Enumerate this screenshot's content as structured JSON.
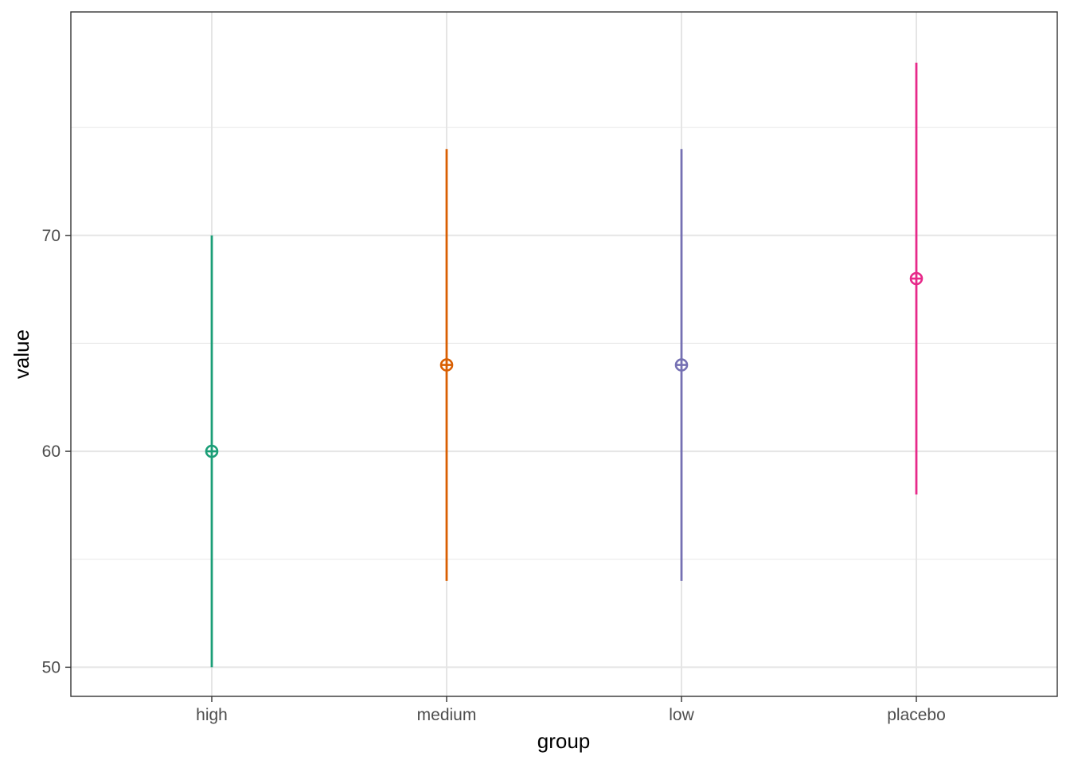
{
  "chart_data": {
    "type": "pointrange",
    "xlabel": "group",
    "ylabel": "value",
    "categories": [
      "high",
      "medium",
      "low",
      "placebo"
    ],
    "points": [
      {
        "group": "high",
        "value": 60,
        "low": 50,
        "high": 70,
        "color": "#1B9E77"
      },
      {
        "group": "medium",
        "value": 64,
        "low": 54,
        "high": 74,
        "color": "#D95F02"
      },
      {
        "group": "low",
        "value": 64,
        "low": 54,
        "high": 74,
        "color": "#7570B3"
      },
      {
        "group": "placebo",
        "value": 68,
        "low": 58,
        "high": 78,
        "color": "#E7298A"
      }
    ],
    "ylim": [
      48.65,
      80.35
    ],
    "y_ticks": [
      50,
      60,
      70
    ],
    "y_tick_labels": [
      "50",
      "60",
      "70"
    ],
    "grid": true,
    "legend": "none"
  }
}
